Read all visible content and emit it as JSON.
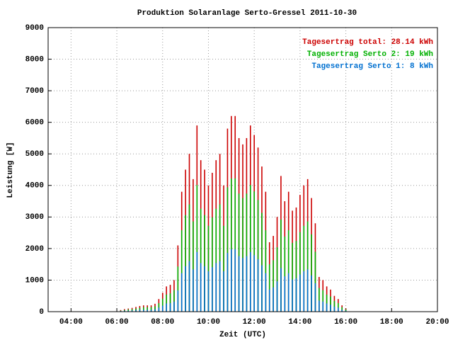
{
  "chart_data": {
    "type": "bar",
    "title": "Produktion Solaranlage Serto-Gressel 2011-10-30",
    "x_label": "Zeit (UTC)",
    "y_label": "Leistung [W]",
    "x": [
      370,
      380,
      390,
      400,
      410,
      420,
      430,
      440,
      450,
      460,
      470,
      480,
      490,
      500,
      510,
      520,
      530,
      540,
      550,
      560,
      570,
      580,
      590,
      600,
      610,
      620,
      630,
      640,
      650,
      660,
      670,
      680,
      690,
      700,
      710,
      720,
      730,
      740,
      750,
      760,
      770,
      780,
      790,
      800,
      810,
      820,
      830,
      840,
      850,
      860,
      870,
      880,
      890,
      900,
      910,
      920,
      930,
      940,
      950,
      960
    ],
    "series": [
      {
        "name": "Tagesertrag total: 28.14 kWh",
        "color": "#cc0000",
        "values": [
          50,
          80,
          100,
          120,
          150,
          180,
          200,
          200,
          200,
          250,
          400,
          600,
          800,
          850,
          1000,
          2100,
          3800,
          4500,
          5000,
          4200,
          5900,
          4800,
          4500,
          4000,
          4400,
          4800,
          5000,
          4000,
          5800,
          6200,
          6200,
          5500,
          5300,
          5500,
          5900,
          5600,
          5200,
          4600,
          3800,
          2200,
          2400,
          3000,
          4300,
          3500,
          3800,
          3200,
          3300,
          3700,
          4000,
          4200,
          3600,
          2800,
          1100,
          1000,
          800,
          700,
          500,
          400,
          200,
          100
        ]
      },
      {
        "name": "Tagesertrag Serto 2: 19 kWh",
        "color": "#00b000",
        "values": [
          30,
          50,
          70,
          80,
          100,
          120,
          140,
          140,
          140,
          170,
          270,
          410,
          540,
          580,
          680,
          1430,
          2580,
          3060,
          3400,
          2860,
          4010,
          3260,
          3060,
          2720,
          2990,
          3260,
          3400,
          2720,
          3940,
          4220,
          4220,
          3740,
          3600,
          3740,
          4010,
          3810,
          3540,
          3130,
          2580,
          1500,
          1630,
          2040,
          2920,
          2380,
          2580,
          2180,
          2240,
          2520,
          2720,
          2860,
          2450,
          1900,
          750,
          680,
          540,
          480,
          340,
          270,
          140,
          70
        ]
      },
      {
        "name": "Tagesertrag Serto 1: 8 kWh",
        "color": "#0070d0",
        "values": [
          20,
          30,
          30,
          40,
          50,
          60,
          60,
          60,
          60,
          80,
          130,
          190,
          260,
          270,
          320,
          670,
          1220,
          1440,
          1600,
          1340,
          1890,
          1540,
          1440,
          1280,
          1410,
          1540,
          1600,
          1280,
          1860,
          1980,
          1980,
          1760,
          1700,
          1760,
          1890,
          1790,
          1660,
          1470,
          1220,
          700,
          770,
          960,
          1380,
          1120,
          1220,
          1020,
          1060,
          1180,
          1280,
          1340,
          1150,
          900,
          350,
          320,
          260,
          220,
          160,
          130,
          60,
          30
        ]
      }
    ],
    "xlim": [
      180,
      1200
    ],
    "xticks": [
      {
        "value": 240,
        "label": "04:00"
      },
      {
        "value": 360,
        "label": "06:00"
      },
      {
        "value": 480,
        "label": "08:00"
      },
      {
        "value": 600,
        "label": "10:00"
      },
      {
        "value": 720,
        "label": "12:00"
      },
      {
        "value": 840,
        "label": "14:00"
      },
      {
        "value": 960,
        "label": "16:00"
      },
      {
        "value": 1080,
        "label": "18:00"
      },
      {
        "value": 1200,
        "label": "20:00"
      }
    ],
    "ylim": [
      0,
      9000
    ],
    "yticks": [
      0,
      1000,
      2000,
      3000,
      4000,
      5000,
      6000,
      7000,
      8000,
      9000
    ],
    "grid": true,
    "legend": "top-right"
  }
}
